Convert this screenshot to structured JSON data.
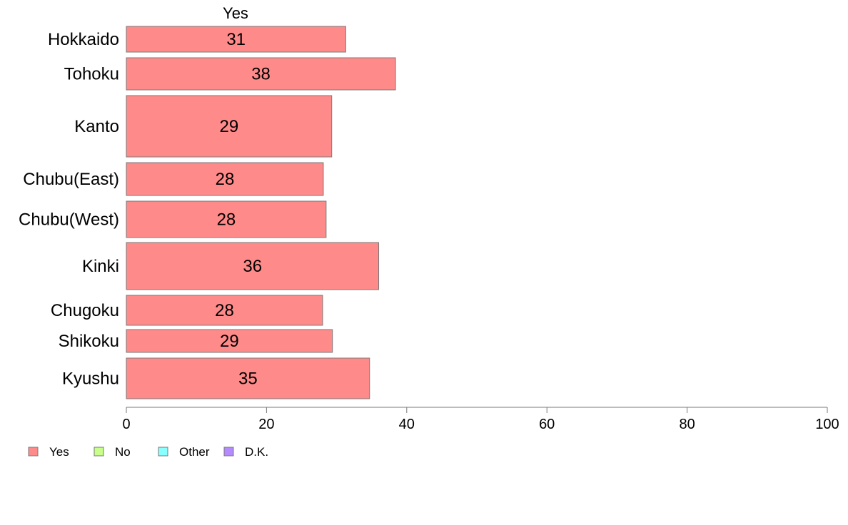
{
  "chart_data": {
    "type": "bar",
    "orientation": "horizontal",
    "stacked": true,
    "column_header": "Yes",
    "categories": [
      "Hokkaido",
      "Tohoku",
      "Kanto",
      "Chubu(East)",
      "Chubu(West)",
      "Kinki",
      "Chugoku",
      "Shikoku",
      "Kyushu"
    ],
    "series": [
      {
        "name": "Yes",
        "color": "#ff8a8a",
        "values": [
          31.3,
          38.4,
          29.3,
          28.1,
          28.5,
          36.0,
          28.0,
          29.4,
          34.7
        ],
        "labels": [
          "31",
          "38",
          "29",
          "28",
          "28",
          "36",
          "28",
          "29",
          "35"
        ]
      }
    ],
    "xlim": [
      0,
      100
    ],
    "xticks": [
      "0",
      "20",
      "40",
      "60",
      "80",
      "100"
    ],
    "grid": false,
    "legend": {
      "placement": "bottom-left",
      "items": [
        {
          "name": "Yes",
          "color": "#ff8a8a"
        },
        {
          "name": "No",
          "color": "#c8ff8a"
        },
        {
          "name": "Other",
          "color": "#8affff"
        },
        {
          "name": "D.K.",
          "color": "#b48aff"
        }
      ]
    }
  }
}
